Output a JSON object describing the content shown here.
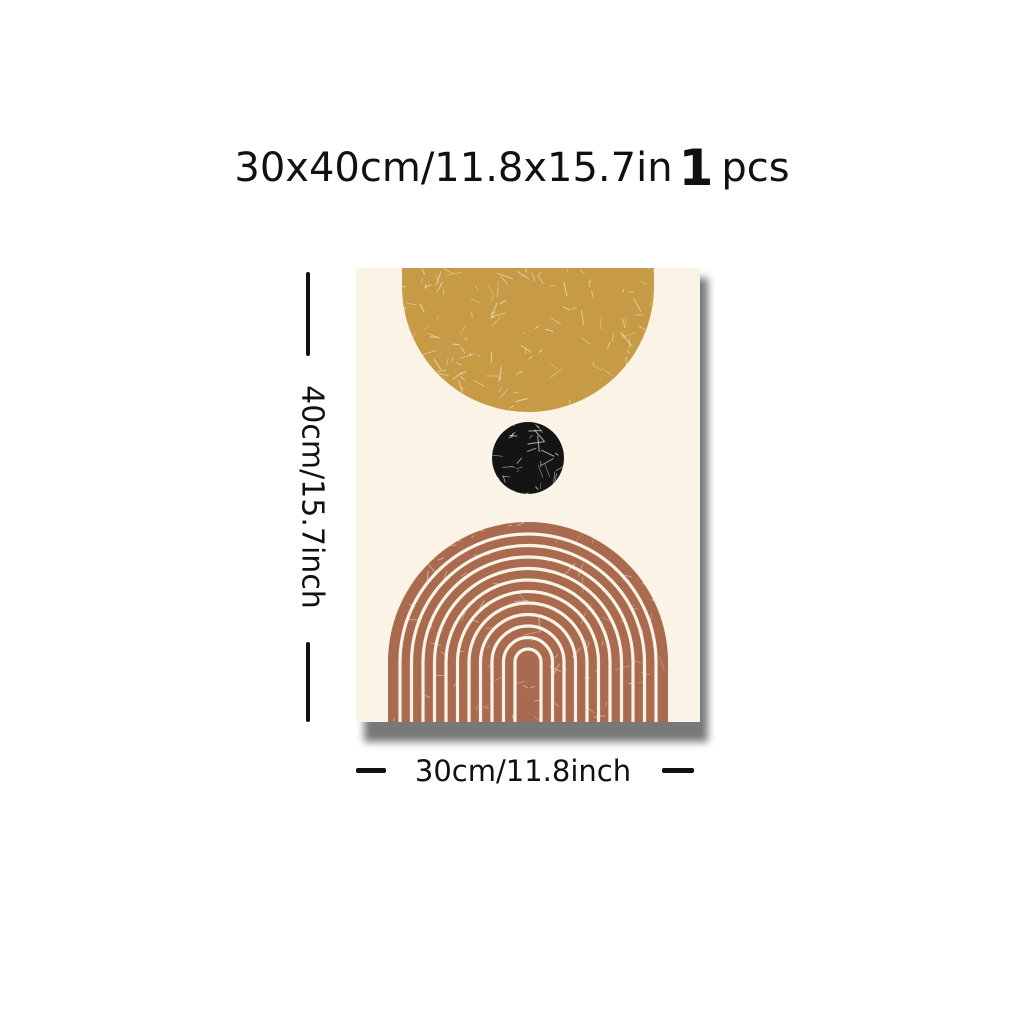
{
  "title": {
    "size_text": "30x40cm/11.8x15.7in",
    "count": "1",
    "unit": "pcs"
  },
  "dimensions": {
    "height_label": "40cm/15.7inch",
    "width_label": "30cm/11.8inch"
  },
  "artwork": {
    "background_color": "#fbf4e6",
    "sun_color": "#c79a45",
    "dot_color": "#141414",
    "arch_color": "#a96a50",
    "stripe_color": "#fbf4e6",
    "shadow_color": "#6a6a6a"
  }
}
